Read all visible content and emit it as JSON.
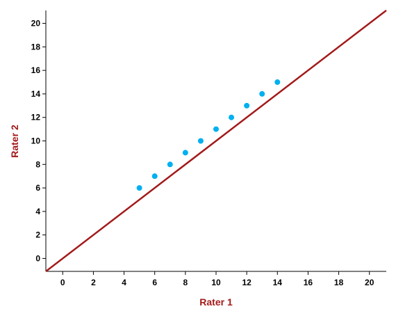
{
  "chart_data": {
    "type": "scatter",
    "title": "",
    "xlabel": "Rater 1",
    "ylabel": "Rater 2",
    "xlim": [
      -1.1,
      21.1
    ],
    "ylim": [
      -1.1,
      21.1
    ],
    "xticks": [
      0,
      2,
      4,
      6,
      8,
      10,
      12,
      14,
      16,
      18,
      20
    ],
    "yticks": [
      0,
      2,
      4,
      6,
      8,
      10,
      12,
      14,
      16,
      18,
      20
    ],
    "grid": false,
    "series": [
      {
        "x": [
          5,
          6,
          7,
          8,
          9,
          10,
          11,
          12,
          13,
          14
        ],
        "y": [
          6,
          7,
          8,
          9,
          10,
          11,
          12,
          13,
          14,
          15
        ],
        "color": "#00b0f0"
      }
    ],
    "reference_line": {
      "slope": 1,
      "intercept": 0,
      "color": "#a31a1a"
    },
    "colors": {
      "axis_label": "#a31a1a",
      "axis": "#000000"
    }
  }
}
